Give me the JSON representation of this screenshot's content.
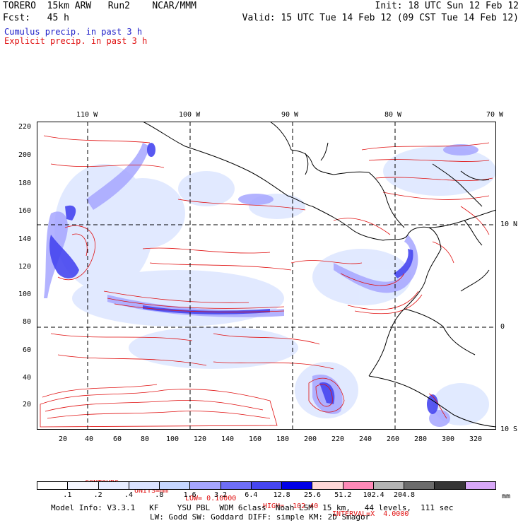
{
  "header": {
    "left_line1": "TORERO  15km ARW   Run2    NCAR/MMM",
    "left_line2": "Fcst:   45 h",
    "right_line1": "Init: 18 UTC Sun 12 Feb 12",
    "right_line2": "Valid: 15 UTC Tue 14 Feb 12 (09 CST Tue 14 Feb 12)"
  },
  "legend": {
    "cumulus": "Cumulus precip. in past 3 h",
    "explicit": "Explicit precip. in past 3 h"
  },
  "map": {
    "top_lon_labels": [
      "110 W",
      "100 W",
      "90 W",
      "80 W",
      "70 W"
    ],
    "left_y_ticks": [
      "220",
      "200",
      "180",
      "160",
      "140",
      "120",
      "100",
      "80",
      "60",
      "40",
      "20"
    ],
    "bottom_x_ticks": [
      "20",
      "40",
      "60",
      "80",
      "100",
      "120",
      "140",
      "160",
      "180",
      "200",
      "220",
      "240",
      "260",
      "280",
      "300",
      "320"
    ],
    "right_lat_labels": [
      "10 N",
      "0",
      "10 S"
    ],
    "colors": {
      "cumulus_fill": "#4646f0",
      "cumulus_light": "#dce6ff",
      "explicit_contour": "#e01010",
      "coast": "#000000"
    }
  },
  "contours": {
    "prefix": "CONTOURS:",
    "units": "UNITS=mm",
    "low": "LOW= 0.10000",
    "high": "HIGH=  102.40",
    "interval": "INTERVAL=X  4.0000"
  },
  "colorbar": {
    "colors": [
      "#ffffff",
      "#f4f6ff",
      "#e6ecff",
      "#dae2ff",
      "#c6d6ff",
      "#a6a6ff",
      "#6e6ef6",
      "#4646f0",
      "#0000e6",
      "#ffd8d8",
      "#ff8ab8",
      "#b4b4b4",
      "#6c6c6c",
      "#363636",
      "#d8a8f8"
    ],
    "labels": [
      ".1",
      ".2",
      ".4",
      ".8",
      "1.6",
      "3.2",
      "6.4",
      "12.8",
      "25.6",
      "51.2",
      "102.4",
      "204.8"
    ],
    "unit": "mm"
  },
  "model_info": {
    "line1": "Model Info: V3.3.1   KF    YSU PBL  WDM 6class  Noah LSM  15 km,   44 levels,  111 sec",
    "line2": "LW: Godd SW: Goddard DIFF: simple KM: 2D Smagor"
  }
}
